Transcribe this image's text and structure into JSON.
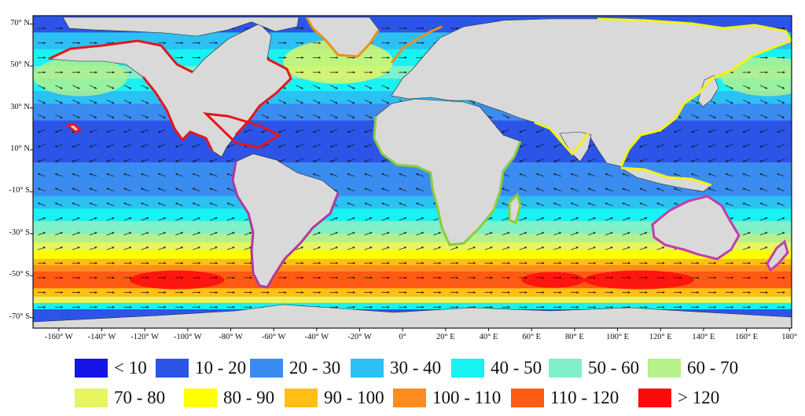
{
  "map": {
    "lat_labels": [
      "70° N",
      "50° N",
      "30° N",
      "10° N",
      "-10° S",
      "-30° S",
      "-50° S",
      "-70° S"
    ],
    "lat_values": [
      70,
      50,
      30,
      10,
      -10,
      -30,
      -50,
      -70
    ],
    "lon_labels": [
      "-160° W",
      "-140° W",
      "-120° W",
      "-100° W",
      "-80° W",
      "-60° W",
      "-40° W",
      "-20° W",
      "0°",
      "20° E",
      "40° E",
      "60° E",
      "80° E",
      "100° E",
      "120° E",
      "140° E",
      "160° E",
      "180°"
    ],
    "lon_values": [
      -160,
      -140,
      -120,
      -100,
      -80,
      -60,
      -40,
      -20,
      0,
      20,
      40,
      60,
      80,
      100,
      120,
      140,
      160,
      180
    ],
    "extent": {
      "lon": [
        -172,
        181
      ],
      "lat": [
        -75,
        74
      ]
    },
    "ocean_field": "wave power density bands, highest in the Southern Ocean westerlies",
    "land_color": "#d9d9d9",
    "coastline_highlight_colors": [
      "#e8141b",
      "#e8911a",
      "#f7f210",
      "#b0399f",
      "#8ccc3a"
    ]
  },
  "legend": {
    "items": [
      {
        "label": "< 10",
        "color": "#1414e6"
      },
      {
        "label": "10 - 20",
        "color": "#2c55e8"
      },
      {
        "label": "20 - 30",
        "color": "#3b8cf0"
      },
      {
        "label": "30 - 40",
        "color": "#2cc0f5"
      },
      {
        "label": "40 - 50",
        "color": "#19f2f2"
      },
      {
        "label": "50 - 60",
        "color": "#7ff0c8"
      },
      {
        "label": "60 - 70",
        "color": "#b6f08a"
      },
      {
        "label": "70 - 80",
        "color": "#e6f560"
      },
      {
        "label": "80 - 90",
        "color": "#ffff00"
      },
      {
        "label": "90 - 100",
        "color": "#ffbf14"
      },
      {
        "label": "100 - 110",
        "color": "#ff8c1e"
      },
      {
        "label": "110 - 120",
        "color": "#ff5a14"
      },
      {
        "label": "> 120",
        "color": "#ff0a0a"
      }
    ]
  }
}
